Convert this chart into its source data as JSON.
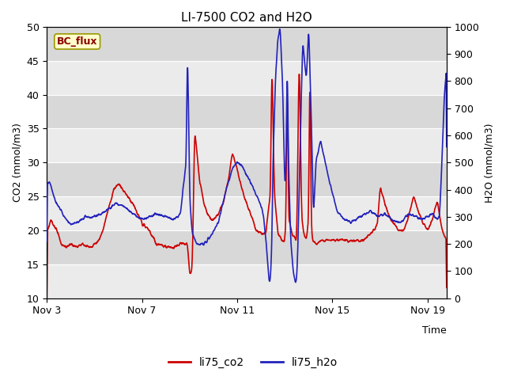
{
  "title": "LI-7500 CO2 and H2O",
  "xlabel": "Time",
  "ylabel_left": "CO2 (mmol/m3)",
  "ylabel_right": "H2O (mmol/m3)",
  "ylim_left": [
    10,
    50
  ],
  "ylim_right": [
    0,
    1000
  ],
  "yticks_left": [
    10,
    15,
    20,
    25,
    30,
    35,
    40,
    45,
    50
  ],
  "yticks_right": [
    0,
    100,
    200,
    300,
    400,
    500,
    600,
    700,
    800,
    900,
    1000
  ],
  "xticklabels": [
    "Nov 3",
    "Nov 7",
    "Nov 11",
    "Nov 15",
    "Nov 19"
  ],
  "xtick_positions": [
    3,
    7,
    11,
    15,
    19
  ],
  "xlim": [
    3,
    19.8
  ],
  "co2_color": "#cc0000",
  "h2o_color": "#2222bb",
  "bg_color": "#e0e0e0",
  "band_color_light": "#ebebeb",
  "band_color_dark": "#d8d8d8",
  "grid_color": "#c8c8c8",
  "legend_label_co2": "li75_co2",
  "legend_label_h2o": "li75_h2o",
  "annotation_text": "BC_flux",
  "annotation_bg": "#ffffcc",
  "annotation_border": "#999900",
  "title_fontsize": 11,
  "axis_fontsize": 9,
  "tick_fontsize": 9,
  "legend_fontsize": 10,
  "line_width": 1.2
}
